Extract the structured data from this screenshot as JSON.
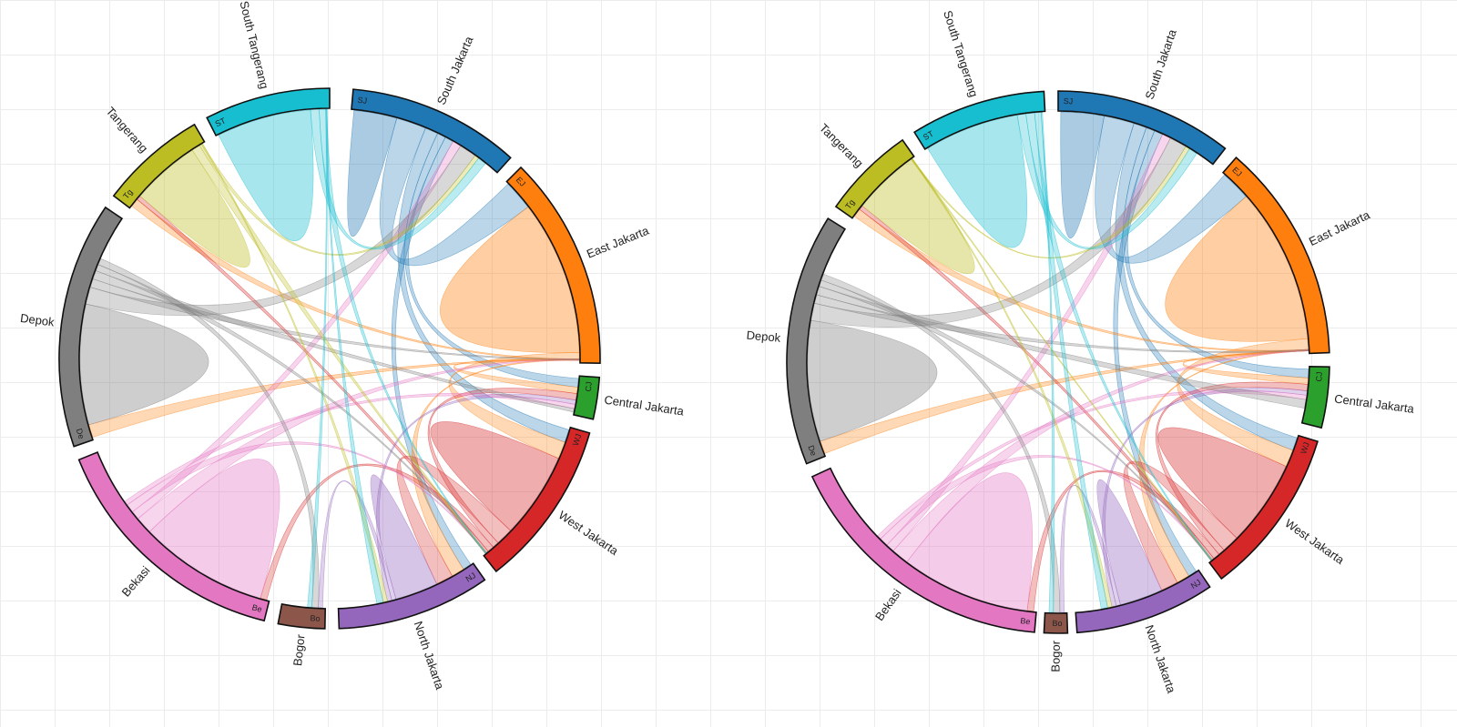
{
  "diagrams": [
    {
      "name": "chord-diagram-left",
      "groups": [
        {
          "key": "SJ",
          "name": "South Jakarta",
          "abbr": "SJ",
          "color": "#1f77b4"
        },
        {
          "key": "EJ",
          "name": "East Jakarta",
          "abbr": "EJ",
          "color": "#ff7f0e"
        },
        {
          "key": "CJ",
          "name": "Central Jakarta",
          "abbr": "CJ",
          "color": "#2ca02c"
        },
        {
          "key": "WJ",
          "name": "West Jakarta",
          "abbr": "WJ",
          "color": "#d62728"
        },
        {
          "key": "NJ",
          "name": "North Jakarta",
          "abbr": "NJ",
          "color": "#9467bd"
        },
        {
          "key": "Bo",
          "name": "Bogor",
          "abbr": "Bo",
          "color": "#8c564b"
        },
        {
          "key": "Be",
          "name": "Bekasi",
          "abbr": "Be",
          "color": "#e377c2"
        },
        {
          "key": "De",
          "name": "Depok",
          "abbr": "De",
          "color": "#7f7f7f"
        },
        {
          "key": "Tg",
          "name": "Tangerang",
          "abbr": "Tg",
          "color": "#bcbd22"
        },
        {
          "key": "ST",
          "name": "South Tangerang",
          "abbr": "ST",
          "color": "#17becf"
        }
      ]
    },
    {
      "name": "chord-diagram-right",
      "groups": [
        {
          "key": "SJ",
          "name": "South Jakarta",
          "abbr": "SJ",
          "color": "#1f77b4"
        },
        {
          "key": "EJ",
          "name": "East Jakarta",
          "abbr": "EJ",
          "color": "#ff7f0e"
        },
        {
          "key": "CJ",
          "name": "Central Jakarta",
          "abbr": "CJ",
          "color": "#2ca02c"
        },
        {
          "key": "WJ",
          "name": "West Jakarta",
          "abbr": "WJ",
          "color": "#d62728"
        },
        {
          "key": "NJ",
          "name": "North Jakarta",
          "abbr": "NJ",
          "color": "#9467bd"
        },
        {
          "key": "Bo",
          "name": "Bogor",
          "abbr": "Bo",
          "color": "#8c564b"
        },
        {
          "key": "Be",
          "name": "Bekasi",
          "abbr": "Be",
          "color": "#e377c2"
        },
        {
          "key": "De",
          "name": "Depok",
          "abbr": "De",
          "color": "#7f7f7f"
        },
        {
          "key": "Tg",
          "name": "Tangerang",
          "abbr": "Tg",
          "color": "#bcbd22"
        },
        {
          "key": "ST",
          "name": "South Tangerang",
          "abbr": "ST",
          "color": "#17becf"
        }
      ]
    }
  ]
}
